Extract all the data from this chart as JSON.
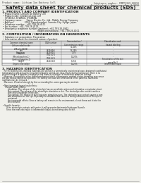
{
  "bg_color": "#f0f0eb",
  "page_bg": "#f0f0eb",
  "title": "Safety data sheet for chemical products (SDS)",
  "header_left": "Product name: Lithium Ion Battery Cell",
  "header_right_l1": "Substance number: FMMT2369-00010",
  "header_right_l2": "Established / Revision: Dec.7,2010",
  "section1_title": "1. PRODUCT AND COMPANY IDENTIFICATION",
  "section1_lines": [
    " • Product name: Lithium Ion Battery Cell",
    " • Product code: Cylindrical-type cell",
    "    SY1865U, SY1865U, SY1865A",
    " • Company name:      Sanyo Electric Co., Ltd., Mobile Energy Company",
    " • Address:               2001, Kamakuradani, Sumoto-City, Hyogo, Japan",
    " • Telephone number:  +81-799-26-4111",
    " • Fax number:  +81-799-26-4123",
    " • Emergency telephone number (daytime): +81-799-26-3842",
    "                                                  (Night and holidays): +81-799-26-4101"
  ],
  "section2_title": "2. COMPOSITION / INFORMATION ON INGREDIENTS",
  "section2_pre_lines": [
    " • Substance or preparation: Preparation",
    " • Information about the chemical nature of product:"
  ],
  "table_col_headers": [
    "Common chemical name",
    "CAS number",
    "Concentration /\nConcentration range",
    "Classification and\nhazard labeling"
  ],
  "table_rows": [
    [
      "Lithium cobalt oxide\n(LiMnxCoxNiO2)",
      "-",
      "30-40%",
      "-"
    ],
    [
      "Iron",
      "7439-89-6",
      "15-25%",
      "-"
    ],
    [
      "Aluminum",
      "7429-90-5",
      "2-5%",
      "-"
    ],
    [
      "Graphite\n(Mined graphite-1)\n(Artificial graphite-1)",
      "7782-42-5\n7782-42-5",
      "10-20%",
      "-"
    ],
    [
      "Copper",
      "7440-50-8",
      "5-15%",
      "Sensitization of the skin\ngroup No.2"
    ],
    [
      "Organic electrolyte",
      "-",
      "10-20%",
      "Inflammable liquid"
    ]
  ],
  "section3_title": "3. HAZARDS IDENTIFICATION",
  "section3_body": [
    "   For the battery cell, chemical materials are stored in a hermetically sealed metal case, designed to withstand",
    "temperatures and pressures encountered during normal use. As a result, during normal use, there is no",
    "physical danger of ignition or explosion and there is no danger of hazardous materials leakage.",
    "   However, if exposed to a fire, added mechanical shock, decomposes, smoked electro-chemistry may cause",
    "the gas release cannot be operated. The battery cell case will be breached or fire patterns, hazardous",
    "materials may be released.",
    "   Moreover, if heated strongly by the surrounding fire, some gas may be emitted.",
    "",
    " • Most important hazard and effects:",
    "     Human health effects:",
    "         Inhalation: The release of the electrolyte has an anesthetic action and stimulates a respiratory tract.",
    "         Skin contact: The release of the electrolyte stimulates a skin. The electrolyte skin contact causes a",
    "         sore and stimulation on the skin.",
    "         Eye contact: The release of the electrolyte stimulates eyes. The electrolyte eye contact causes a sore",
    "         and stimulation on the eye. Especially, a substance that causes a strong inflammation of the eyes is",
    "         contained.",
    "         Environmental effects: Since a battery cell remains in the environment, do not throw out it into the",
    "         environment.",
    "",
    " • Specific hazards:",
    "       If the electrolyte contacts with water, it will generate detrimental hydrogen fluoride.",
    "       Since the neat electrolyte is inflammable liquid, do not bring close to fire."
  ],
  "footer_line": true,
  "text_color": "#1a1a1a",
  "line_color": "#888888",
  "table_header_bg": "#d8d8d8",
  "table_row_bg1": "#ffffff",
  "table_row_bg2": "#ececec",
  "table_border": "#777777"
}
